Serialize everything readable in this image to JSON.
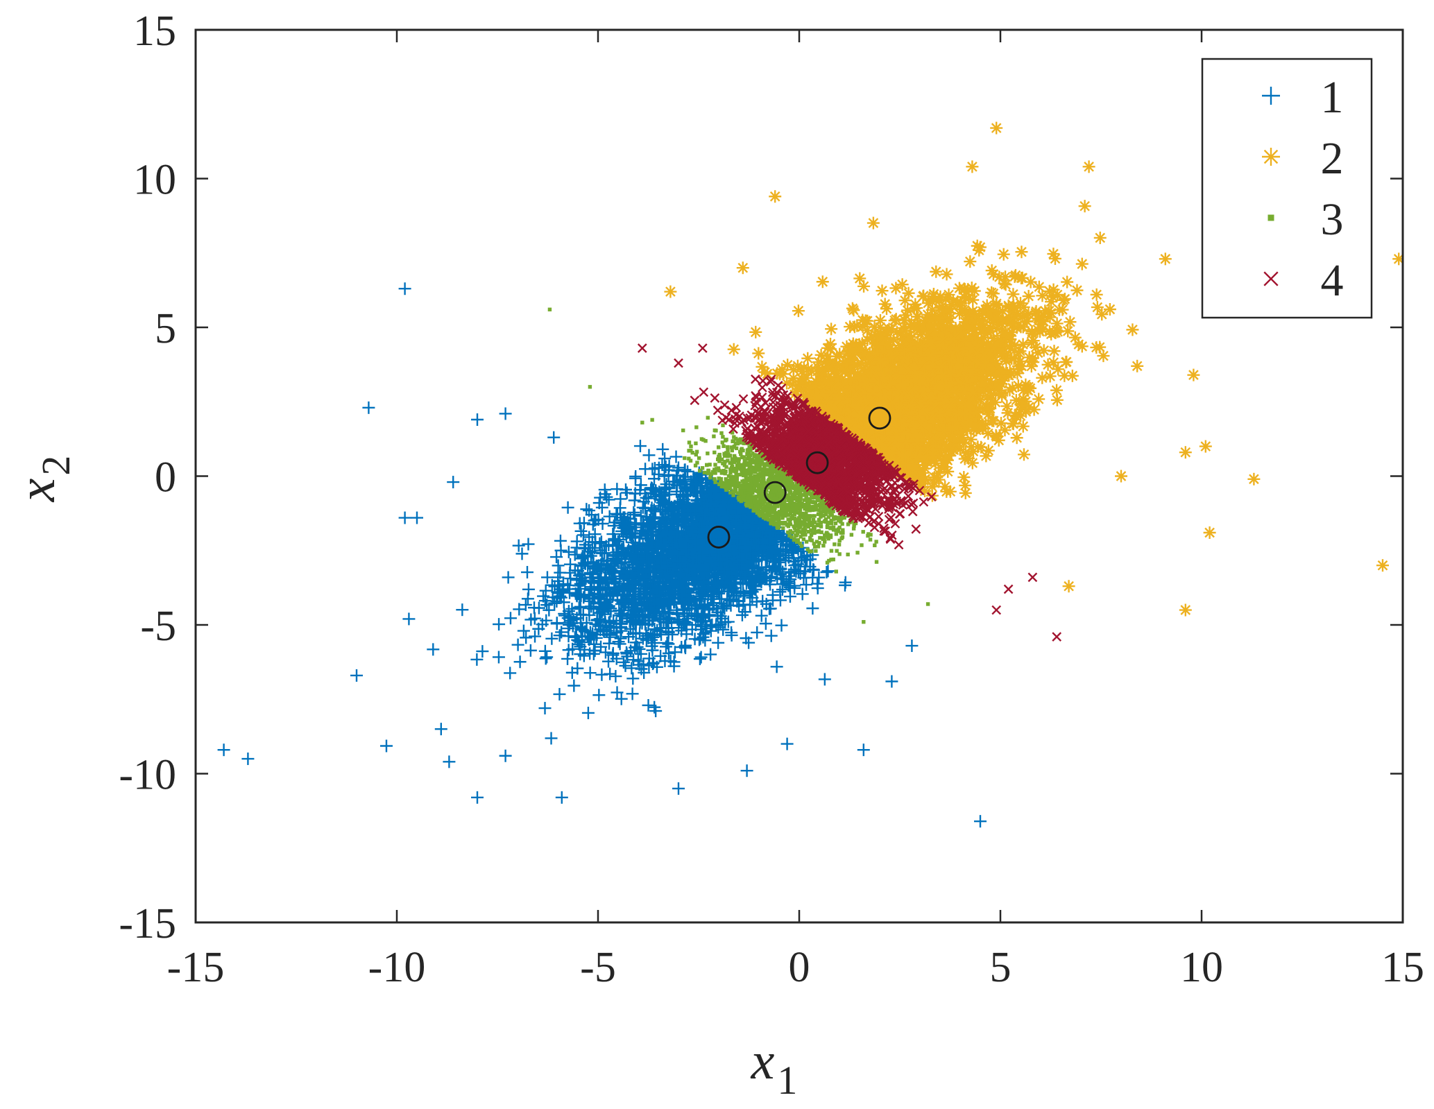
{
  "chart_data": {
    "type": "scatter",
    "xlabel": "x",
    "xlabel_sub": "1",
    "ylabel": "x",
    "ylabel_sub": "2",
    "xlim": [
      -15,
      15
    ],
    "ylim": [
      -15,
      15
    ],
    "xticks": [
      -15,
      -10,
      -5,
      0,
      5,
      10,
      15
    ],
    "yticks": [
      -15,
      -10,
      -5,
      0,
      5,
      10,
      15
    ],
    "grid": false,
    "legend_position": "top-right",
    "series": [
      {
        "name": "1",
        "marker": "plus",
        "color": "#0072BD",
        "center": [
          -2,
          -2
        ],
        "outliers": [
          [
            -9.8,
            6.3
          ],
          [
            -10.7,
            2.3
          ],
          [
            -14.3,
            -9.2
          ],
          [
            -13.7,
            -9.5
          ],
          [
            -11.0,
            -6.7
          ],
          [
            -9.8,
            -1.4
          ],
          [
            -9.5,
            -1.4
          ],
          [
            -9.7,
            -4.8
          ],
          [
            -8.6,
            -0.2
          ],
          [
            -8.0,
            1.9
          ],
          [
            -7.3,
            2.1
          ],
          [
            -8.0,
            -10.8
          ],
          [
            -5.9,
            -10.8
          ],
          [
            -3.0,
            -10.5
          ],
          [
            -1.3,
            -9.9
          ],
          [
            -0.3,
            -9.0
          ],
          [
            1.6,
            -9.2
          ],
          [
            4.5,
            -11.6
          ],
          [
            2.3,
            -6.9
          ],
          [
            2.8,
            -5.7
          ],
          [
            -8.9,
            -8.5
          ],
          [
            -8.7,
            -9.6
          ],
          [
            -7.3,
            -9.4
          ],
          [
            -6.1,
            1.3
          ]
        ]
      },
      {
        "name": "2",
        "marker": "asterisk",
        "color": "#EDB120",
        "center": [
          2,
          2
        ],
        "outliers": [
          [
            4.9,
            11.7
          ],
          [
            4.3,
            10.4
          ],
          [
            -0.6,
            9.4
          ],
          [
            7.2,
            10.4
          ],
          [
            14.9,
            7.3
          ],
          [
            9.1,
            7.3
          ],
          [
            9.8,
            3.4
          ],
          [
            11.3,
            -0.1
          ],
          [
            10.1,
            1.0
          ],
          [
            10.2,
            -1.9
          ],
          [
            9.6,
            -4.5
          ],
          [
            14.5,
            -3.0
          ],
          [
            6.7,
            -3.7
          ],
          [
            -3.2,
            6.2
          ],
          [
            -1.4,
            7.0
          ],
          [
            8.0,
            0.0
          ],
          [
            8.4,
            3.7
          ],
          [
            9.6,
            0.8
          ]
        ]
      },
      {
        "name": "3",
        "marker": "point",
        "color": "#77AC30",
        "center": [
          -0.6,
          -0.6
        ],
        "outliers": [
          [
            -6.2,
            5.6
          ],
          [
            -5.2,
            3.0
          ],
          [
            -3.9,
            1.8
          ],
          [
            3.2,
            -4.3
          ],
          [
            1.6,
            -4.9
          ]
        ]
      },
      {
        "name": "4",
        "marker": "cross",
        "color": "#A2142F",
        "center": [
          0.5,
          0.5
        ],
        "outliers": [
          [
            -3.9,
            4.3
          ],
          [
            -3.0,
            3.8
          ],
          [
            -2.4,
            4.3
          ],
          [
            6.4,
            -5.4
          ],
          [
            5.8,
            -3.4
          ],
          [
            5.2,
            -3.8
          ],
          [
            4.9,
            -4.5
          ]
        ]
      }
    ],
    "centroids": [
      [
        -2.0,
        -2.05
      ],
      [
        2.0,
        1.95
      ],
      [
        -0.6,
        -0.55
      ],
      [
        0.45,
        0.45
      ]
    ]
  }
}
